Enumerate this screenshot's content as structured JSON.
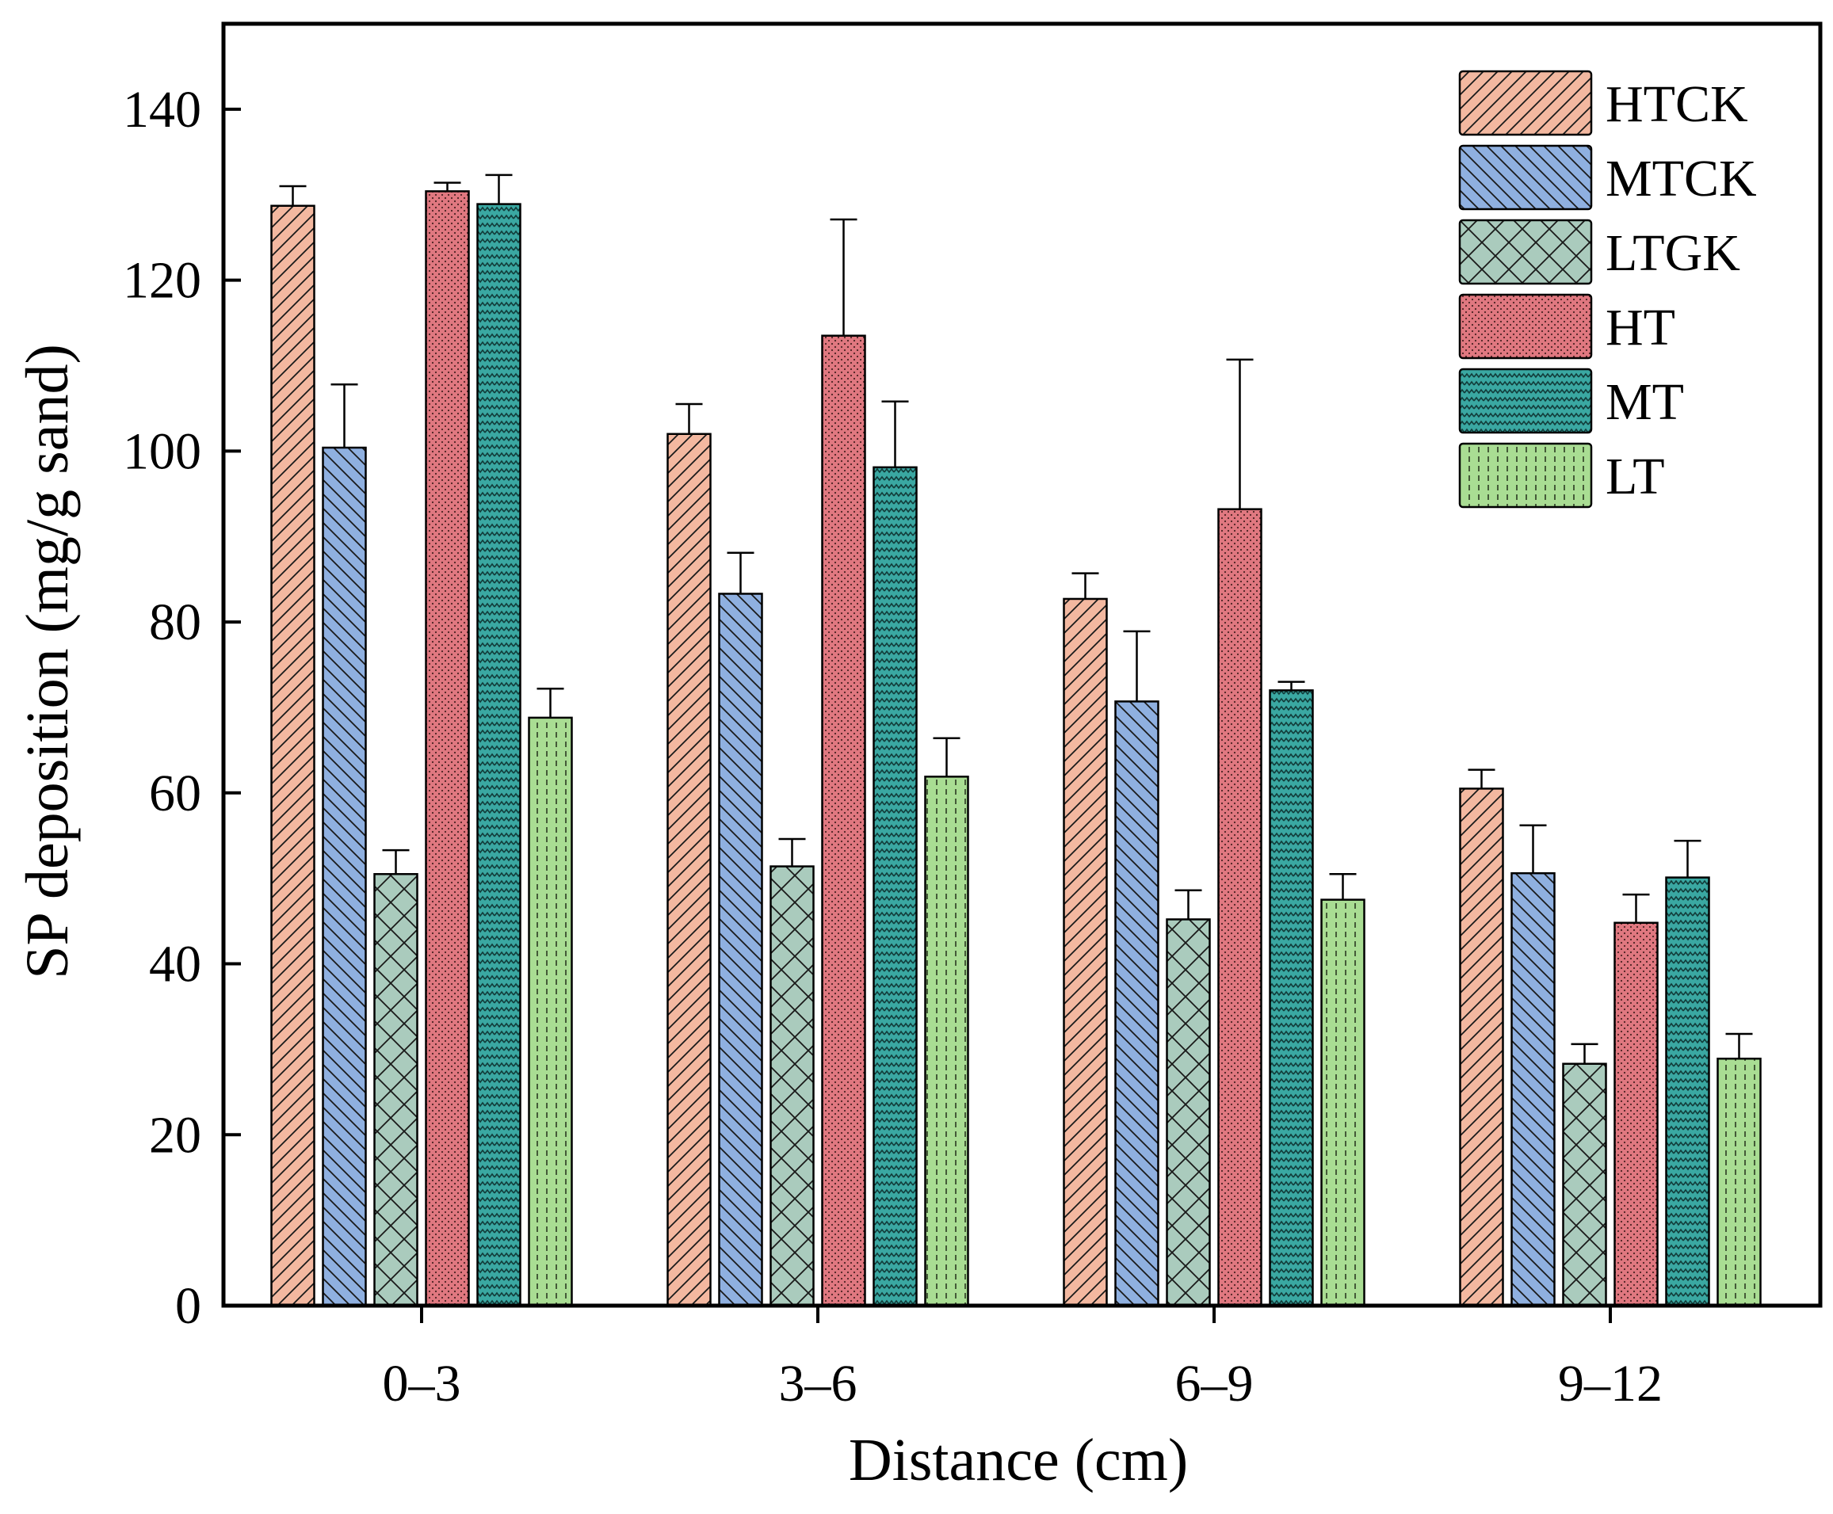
{
  "chart_data": {
    "type": "bar",
    "title": "",
    "xlabel": "Distance (cm)",
    "ylabel": "SP deposition (mg/g sand)",
    "ylim": [
      0,
      150
    ],
    "yticks": [
      "0",
      "20",
      "40",
      "60",
      "80",
      "100",
      "120",
      "140"
    ],
    "categories": [
      "0–3",
      "3–6",
      "6–9",
      "9–12"
    ],
    "legend_position": "top-right",
    "series": [
      {
        "name": "HTCK",
        "color": "#f3b8a0",
        "pattern": "diag-right",
        "values": [
          128.7,
          102.0,
          82.7,
          60.5
        ],
        "errors": [
          2.3,
          3.5,
          3.0,
          2.2
        ]
      },
      {
        "name": "MTCK",
        "color": "#8fb0e0",
        "pattern": "diag-left",
        "values": [
          100.4,
          83.3,
          70.7,
          50.6
        ],
        "errors": [
          7.4,
          4.8,
          8.2,
          5.6
        ]
      },
      {
        "name": "LTGK",
        "color": "#aacbbd",
        "pattern": "crosshatch",
        "values": [
          50.5,
          51.4,
          45.2,
          28.3
        ],
        "errors": [
          2.8,
          3.2,
          3.4,
          2.3
        ]
      },
      {
        "name": "HT",
        "color": "#e07880",
        "pattern": "dots",
        "values": [
          130.4,
          113.5,
          93.2,
          44.8
        ],
        "errors": [
          1.0,
          13.6,
          17.5,
          3.3
        ]
      },
      {
        "name": "MT",
        "color": "#3aa8a2",
        "pattern": "zigzag",
        "values": [
          128.9,
          98.1,
          72.0,
          50.1
        ],
        "errors": [
          3.4,
          7.7,
          1.0,
          4.3
        ]
      },
      {
        "name": "LT",
        "color": "#a9dd93",
        "pattern": "dashed-vertical",
        "values": [
          68.8,
          61.9,
          47.5,
          28.9
        ],
        "errors": [
          3.4,
          4.5,
          3.0,
          2.9
        ]
      }
    ]
  }
}
